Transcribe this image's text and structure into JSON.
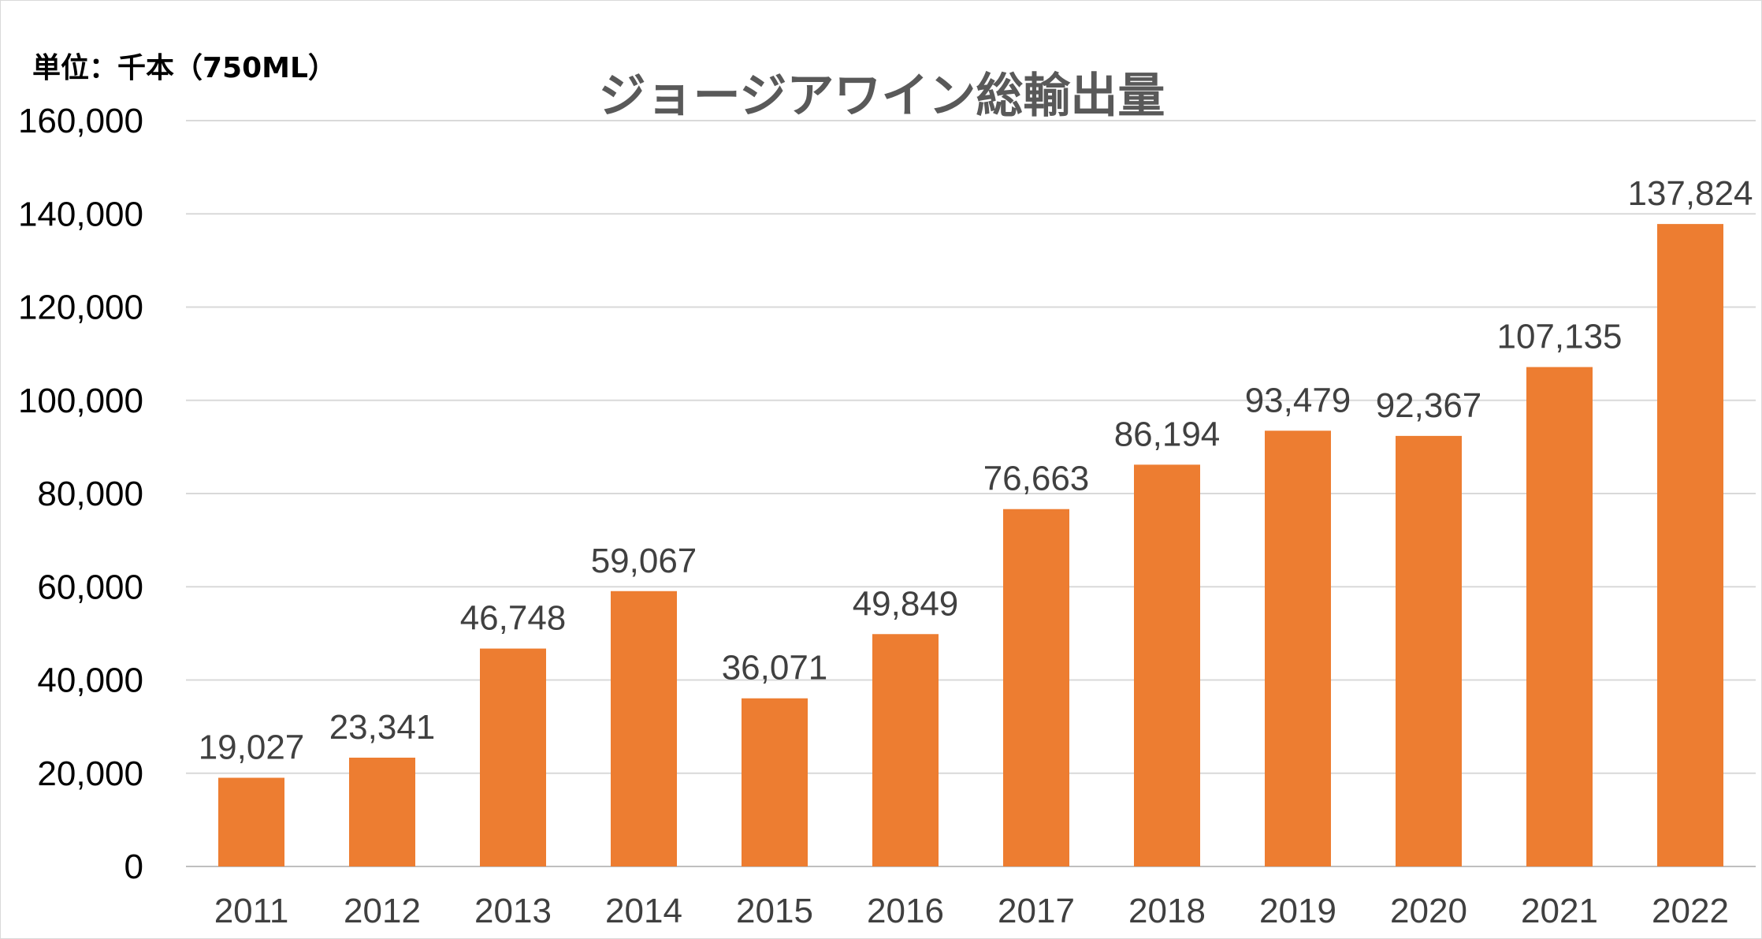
{
  "chart_data": {
    "type": "bar",
    "title": "ジョージアワイン総輸出量",
    "unit_label": "単位：千本（750ML）",
    "xlabel": "",
    "ylabel": "",
    "categories": [
      "2011",
      "2012",
      "2013",
      "2014",
      "2015",
      "2016",
      "2017",
      "2018",
      "2019",
      "2020",
      "2021",
      "2022"
    ],
    "values": [
      19027,
      23341,
      46748,
      59067,
      36071,
      49849,
      76663,
      86194,
      93479,
      92367,
      107135,
      137824
    ],
    "value_labels": [
      "19,027",
      "23,341",
      "46,748",
      "59,067",
      "36,071",
      "49,849",
      "76,663",
      "86,194",
      "93,479",
      "92,367",
      "107,135",
      "137,824"
    ],
    "ylim": [
      0,
      160000
    ],
    "yticks": [
      0,
      20000,
      40000,
      60000,
      80000,
      100000,
      120000,
      140000,
      160000
    ],
    "ytick_labels": [
      "0",
      "20,000",
      "40,000",
      "60,000",
      "80,000",
      "100,000",
      "120,000",
      "140,000",
      "160,000"
    ],
    "grid": true,
    "legend": "none",
    "colors": {
      "bar": "#ed7d31",
      "grid": "#d9d9d9",
      "axis": "#bfbfbf",
      "title": "#595959",
      "labels": "#404040"
    }
  }
}
